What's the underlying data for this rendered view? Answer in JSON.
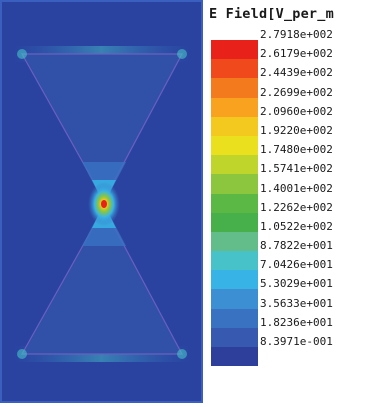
{
  "legend": {
    "title": "E Field[V_per_m",
    "labels": [
      "2.7918e+002",
      "2.6179e+002",
      "2.4439e+002",
      "2.2699e+002",
      "2.0960e+002",
      "1.9220e+002",
      "1.7480e+002",
      "1.5741e+002",
      "1.4001e+002",
      "1.2262e+002",
      "1.0522e+002",
      "8.7822e+001",
      "7.0426e+001",
      "5.3029e+001",
      "3.5633e+001",
      "1.8236e+001",
      "8.3971e-001"
    ],
    "colors": [
      "#e8211b",
      "#f04a1c",
      "#f37a1d",
      "#f9a21f",
      "#f3c81f",
      "#eae01e",
      "#bfd52c",
      "#8cc63f",
      "#5cb845",
      "#47b04a",
      "#62bd8a",
      "#46c2c8",
      "#38b3e6",
      "#3c8fd2",
      "#3a72c2",
      "#3759b0",
      "#2d3f9a"
    ]
  },
  "plot": {
    "background_color": "#2a43a0"
  }
}
